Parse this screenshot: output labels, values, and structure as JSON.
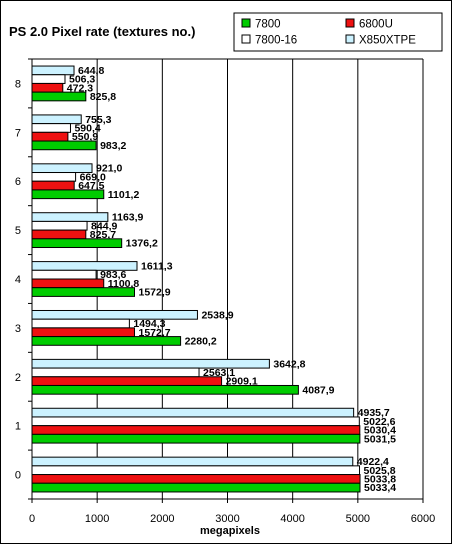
{
  "chart_data": {
    "type": "bar",
    "orientation": "horizontal",
    "title": "PS 2.0 Pixel rate (textures no.)",
    "xlabel": "megapixels",
    "ylabel": "",
    "xlim": [
      0,
      6000
    ],
    "x_ticks": [
      0,
      1000,
      2000,
      3000,
      4000,
      5000,
      6000
    ],
    "grid": true,
    "legend_position": "top-right",
    "categories": [
      "0",
      "1",
      "2",
      "3",
      "4",
      "5",
      "6",
      "7",
      "8"
    ],
    "series": [
      {
        "name": "7800",
        "color": "#00cc00",
        "values": [
          5033.4,
          5031.5,
          4087.9,
          2280.2,
          1572.9,
          1376.2,
          1101.2,
          983.2,
          825.8
        ]
      },
      {
        "name": "6800U",
        "color": "#ee1111",
        "values": [
          5033.8,
          5030.4,
          2909.1,
          1572.7,
          1100.8,
          825.7,
          647.5,
          550.9,
          472.3
        ]
      },
      {
        "name": "7800-16",
        "color": "#ffffff",
        "values": [
          5025.8,
          5022.6,
          2563.1,
          1494.3,
          983.6,
          844.9,
          669.0,
          590.4,
          506.3
        ]
      },
      {
        "name": "X850XTPE",
        "color": "#ccf2ff",
        "values": [
          4922.4,
          4935.7,
          3642.8,
          2538.9,
          1611.3,
          1163.9,
          921.0,
          755.3,
          644.8
        ]
      }
    ]
  }
}
